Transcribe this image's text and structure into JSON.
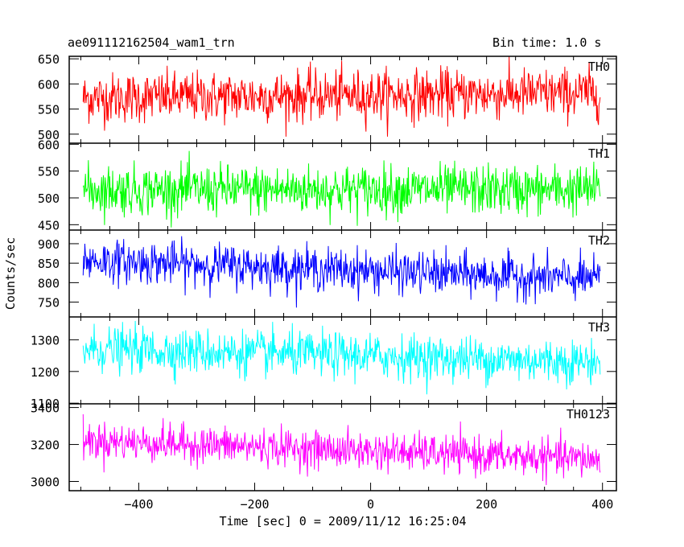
{
  "header": {
    "title": "ae091112162504_wam1_trn",
    "bin_time": "Bin time: 1.0 s"
  },
  "axes": {
    "xlabel": "Time [sec] 0 = 2009/11/12 16:25:04",
    "ylabel": "Counts/sec",
    "x_ticks": [
      -400,
      -200,
      0,
      200,
      400
    ],
    "x_tick_labels": [
      "−400",
      "−200",
      "0",
      "200",
      "400"
    ]
  },
  "chart_data": {
    "type": "line",
    "x": {
      "start": -496,
      "end": 396,
      "step": 1
    },
    "xlim": [
      -520,
      424
    ],
    "series": [
      {
        "name": "TH0",
        "color": "#ff0000",
        "ylim": [
          482,
          655
        ],
        "ticks": [
          500,
          550,
          600,
          650
        ],
        "mean_start": 572,
        "mean_end": 582,
        "noise": 25,
        "min": 495,
        "max": 655
      },
      {
        "name": "TH1",
        "color": "#00ff00",
        "ylim": [
          440,
          602
        ],
        "ticks": [
          450,
          500,
          550,
          600
        ],
        "mean_start": 515,
        "mean_end": 515,
        "noise": 23,
        "min": 445,
        "max": 600
      },
      {
        "name": "TH2",
        "color": "#0000ff",
        "ylim": [
          712,
          935
        ],
        "ticks": [
          750,
          800,
          850,
          900
        ],
        "mean_start": 858,
        "mean_end": 808,
        "noise": 27,
        "min": 728,
        "max": 935
      },
      {
        "name": "TH3",
        "color": "#00ffff",
        "ylim": [
          1098,
          1372
        ],
        "ticks": [
          1100,
          1200,
          1300
        ],
        "mean_start": 1272,
        "mean_end": 1230,
        "noise": 35,
        "min": 1105,
        "max": 1372
      },
      {
        "name": "TH0123",
        "color": "#ff00ff",
        "ylim": [
          2950,
          3420
        ],
        "ticks": [
          3000,
          3200,
          3400
        ],
        "mean_start": 3222,
        "mean_end": 3118,
        "noise": 50,
        "min": 2960,
        "max": 3410
      }
    ]
  }
}
